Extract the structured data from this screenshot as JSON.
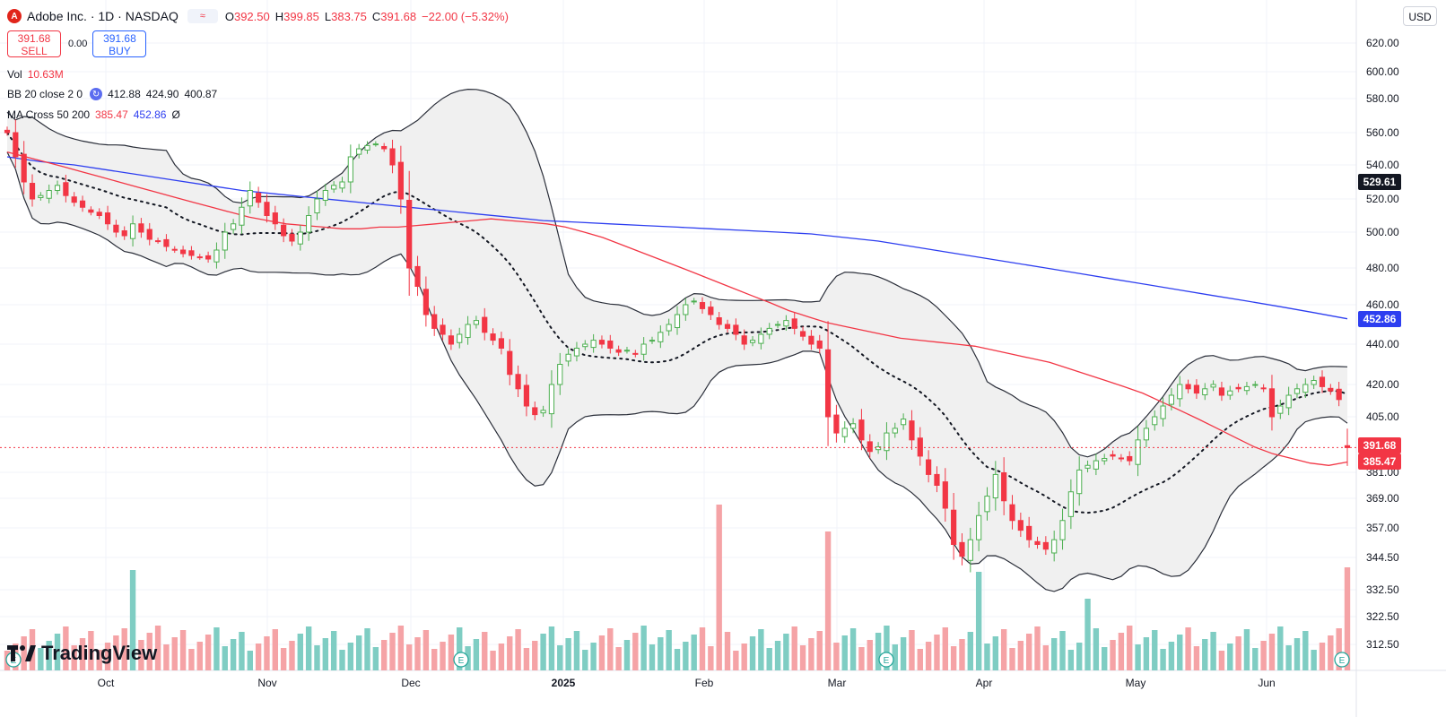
{
  "header": {
    "logo_letter": "A",
    "title": "Adobe Inc. · 1D · NASDAQ",
    "open_label": "O",
    "open": "392.50",
    "high_label": "H",
    "high": "399.85",
    "low_label": "L",
    "low": "383.75",
    "close_label": "C",
    "close": "391.68",
    "change": "−22.00 (−5.32%)"
  },
  "trade": {
    "sell_price": "391.68",
    "sell_label": "SELL",
    "spread": "0.00",
    "buy_price": "391.68",
    "buy_label": "BUY"
  },
  "indicators": {
    "vol_name": "Vol",
    "vol_value": "10.63M",
    "bb_name": "BB 20 close 2 0",
    "bb_basis": "412.88",
    "bb_upper": "424.90",
    "bb_lower": "400.87",
    "ma_name": "MA Cross 50 200",
    "ma50": "385.47",
    "ma200": "452.86",
    "ma_extra": "Ø"
  },
  "currency": "USD",
  "brand": "TradingView",
  "colors": {
    "up": "#4caf50",
    "down": "#f23645",
    "ma200": "#2d3ef0",
    "ma50": "#f23645",
    "band_fill": "#f2f2f2",
    "vol_up": "#7fcdc3",
    "vol_down": "#f5a3a6"
  },
  "chart_data": {
    "type": "candlestick",
    "y_axis_ticks": [
      "620.00",
      "600.00",
      "580.00",
      "560.00",
      "540.00",
      "520.00",
      "500.00",
      "480.00",
      "460.00",
      "440.00",
      "420.00",
      "405.00",
      "381.00",
      "369.00",
      "357.00",
      "344.50",
      "332.50",
      "322.50",
      "312.50"
    ],
    "x_axis_labels": [
      "Oct",
      "Nov",
      "Dec",
      "2025",
      "Feb",
      "Mar",
      "Apr",
      "May",
      "Jun"
    ],
    "price_labels": [
      {
        "text": "529.61",
        "color": "#131722"
      },
      {
        "text": "452.86",
        "color": "#2d3ef0"
      },
      {
        "text": "391.68",
        "color": "#f23645"
      },
      {
        "text": "385.47",
        "color": "#f23645"
      }
    ],
    "earnings_markers": [
      "E",
      "E",
      "E",
      "E"
    ],
    "closes": [
      560,
      545,
      530,
      520,
      522,
      525,
      528,
      522,
      518,
      515,
      512,
      510,
      505,
      500,
      498,
      505,
      500,
      496,
      495,
      492,
      490,
      488,
      487,
      486,
      485,
      490,
      500,
      505,
      515,
      525,
      518,
      510,
      505,
      498,
      495,
      500,
      510,
      520,
      525,
      528,
      530,
      545,
      550,
      552,
      553,
      550,
      540,
      520,
      480,
      470,
      455,
      448,
      445,
      440,
      445,
      450,
      452,
      446,
      442,
      438,
      425,
      418,
      410,
      406,
      408,
      420,
      430,
      435,
      438,
      440,
      442,
      440,
      438,
      436,
      437,
      435,
      440,
      442,
      446,
      450,
      455,
      460,
      462,
      458,
      455,
      450,
      448,
      445,
      440,
      442,
      445,
      448,
      450,
      452,
      448,
      444,
      440,
      438,
      405,
      398,
      400,
      402,
      395,
      390,
      392,
      398,
      400,
      404,
      395,
      388,
      380,
      375,
      365,
      350,
      345,
      352,
      362,
      370,
      380,
      368,
      360,
      356,
      352,
      350,
      348,
      352,
      360,
      372,
      382,
      384,
      386,
      387,
      388,
      387,
      386,
      395,
      400,
      405,
      410,
      415,
      420,
      418,
      416,
      418,
      420,
      415,
      417,
      418,
      419,
      420,
      418,
      405,
      410,
      415,
      418,
      420,
      422,
      419,
      417,
      413,
      391.68
    ],
    "ma50": [
      548,
      545,
      542,
      539,
      536,
      533,
      530,
      527,
      524,
      521,
      518,
      515,
      512,
      509,
      507,
      505,
      504,
      503,
      502,
      502,
      503,
      503,
      504,
      505,
      506,
      507,
      508,
      507,
      506,
      505,
      503,
      500,
      497,
      493,
      489,
      485,
      481,
      477,
      473,
      469,
      465,
      461,
      457,
      454,
      451,
      449,
      447,
      445,
      443,
      442,
      441,
      440,
      439,
      437,
      435,
      433,
      431,
      428,
      425,
      422,
      419,
      416,
      412,
      408,
      404,
      400,
      396,
      392,
      389,
      387,
      385,
      384,
      385.47
    ],
    "ma200": [
      545,
      542,
      540,
      537,
      534,
      531,
      528,
      525,
      523,
      521,
      519,
      517,
      515,
      513,
      511,
      509,
      507,
      506,
      505,
      504,
      503,
      502,
      501,
      500,
      499,
      497,
      495,
      492,
      489,
      486,
      483,
      480,
      477,
      474,
      471,
      468,
      465,
      462,
      459,
      456,
      452.86
    ],
    "volume_unit": "M",
    "last_volume": "10.63M"
  }
}
